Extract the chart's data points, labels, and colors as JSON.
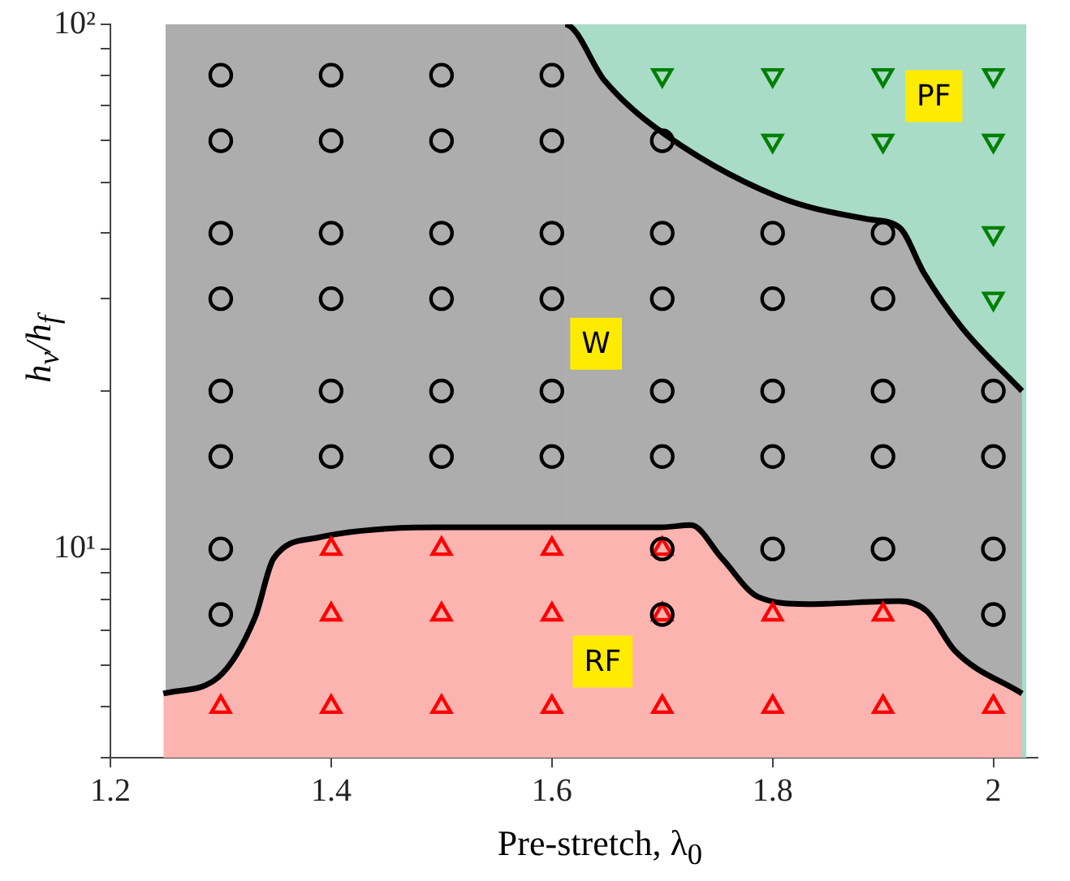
{
  "chart_data": {
    "type": "scatter",
    "xlabel": "Pre-stretch, λ$_{0}$",
    "ylabel": "h$_{v}$/h$_{f}$",
    "xlim": [
      1.2,
      2.04
    ],
    "xticks": [
      1.2,
      1.4,
      1.6,
      1.8,
      2
    ],
    "ylim": [
      4,
      100
    ],
    "log": "y",
    "yticks": [
      {
        "value": 4,
        "label": null
      },
      {
        "value": 5,
        "label": null
      },
      {
        "value": 6,
        "label": null
      },
      {
        "value": 7,
        "label": null
      },
      {
        "value": 8,
        "label": null
      },
      {
        "value": 9,
        "label": null
      },
      {
        "value": 10,
        "label": "10¹"
      },
      {
        "value": 20,
        "label": null
      },
      {
        "value": 30,
        "label": null
      },
      {
        "value": 40,
        "label": null
      },
      {
        "value": 50,
        "label": null
      },
      {
        "value": 60,
        "label": null
      },
      {
        "value": 70,
        "label": null
      },
      {
        "value": 80,
        "label": null
      },
      {
        "value": 90,
        "label": null
      },
      {
        "value": 100,
        "label": "10²"
      }
    ],
    "grid": false,
    "legend": false,
    "series": [
      {
        "type": "scatter",
        "color": "#000000",
        "marker": "circle",
        "x": [
          1.3,
          1.3,
          1.3,
          1.3,
          1.3,
          1.3,
          1.3,
          1.3,
          1.4,
          1.4,
          1.4,
          1.4,
          1.4,
          1.4,
          1.5,
          1.5,
          1.5,
          1.5,
          1.5,
          1.5,
          1.6,
          1.6,
          1.6,
          1.6,
          1.6,
          1.6,
          1.7,
          1.7,
          1.7,
          1.7,
          1.7,
          1.7,
          1.7,
          1.8,
          1.8,
          1.8,
          1.8,
          1.8,
          1.9,
          1.9,
          1.9,
          1.9,
          1.9,
          2,
          2,
          2,
          2
        ],
        "values": [
          80,
          60,
          40,
          30,
          20,
          15,
          10,
          7.5,
          80,
          60,
          40,
          30,
          20,
          15,
          80,
          60,
          40,
          30,
          20,
          15,
          80,
          60,
          40,
          30,
          20,
          15,
          60,
          40,
          30,
          20,
          15,
          10,
          7.5,
          40,
          30,
          20,
          15,
          10,
          40,
          30,
          20,
          15,
          10,
          20,
          15,
          10,
          7.5
        ]
      },
      {
        "type": "scatter",
        "color": "#ff0000",
        "marker": "triangle",
        "x": [
          1.3,
          1.4,
          1.4,
          1.4,
          1.5,
          1.5,
          1.5,
          1.6,
          1.6,
          1.6,
          1.7,
          1.7,
          1.7,
          1.8,
          1.8,
          1.9,
          1.9,
          2
        ],
        "values": [
          5,
          10,
          7.5,
          5,
          10,
          7.5,
          5,
          10,
          7.5,
          5,
          10,
          7.5,
          5,
          7.5,
          5,
          7.5,
          5,
          5
        ]
      },
      {
        "type": "scatter",
        "color": "#008000",
        "marker": "triangle_down",
        "x": [
          1.7,
          1.8,
          1.8,
          1.9,
          1.9,
          2,
          2,
          2,
          2
        ],
        "values": [
          80,
          80,
          60,
          80,
          60,
          80,
          60,
          40,
          30
        ]
      },
      {
        "type": "area",
        "color": "#fbb4b0",
        "x": [
          1.248,
          1.298,
          1.331,
          1.348,
          1.387,
          1.498,
          1.61,
          1.699,
          1.726,
          1.754,
          1.787,
          1.832,
          1.915,
          1.94,
          1.965,
          2.026
        ],
        "values": [
          5.3,
          5.7,
          7.4,
          9.6,
          10.5,
          11,
          11,
          11,
          11.1,
          9.6,
          8.1,
          7.85,
          7.95,
          7.6,
          6.4,
          5.3
        ]
      },
      {
        "type": "area",
        "color": "#adadad",
        "x": [
          1.25,
          1.612,
          1.648,
          1.692,
          1.804,
          1.887,
          1.915,
          1.937,
          1.971,
          2.026
        ],
        "values": [
          100,
          100,
          78,
          64,
          47,
          42.5,
          41,
          33.6,
          26.5,
          20
        ]
      },
      {
        "type": "area",
        "color": "#a8dcc7",
        "x": [
          1.612,
          2.03
        ],
        "values": [
          100,
          100
        ]
      }
    ],
    "annotations": [
      {
        "text": "W",
        "x": 1.64,
        "y": 24.6
      },
      {
        "text": "RF",
        "x": 1.646,
        "y": 6.1
      },
      {
        "text": "PF",
        "x": 1.946,
        "y": 73
      }
    ]
  }
}
